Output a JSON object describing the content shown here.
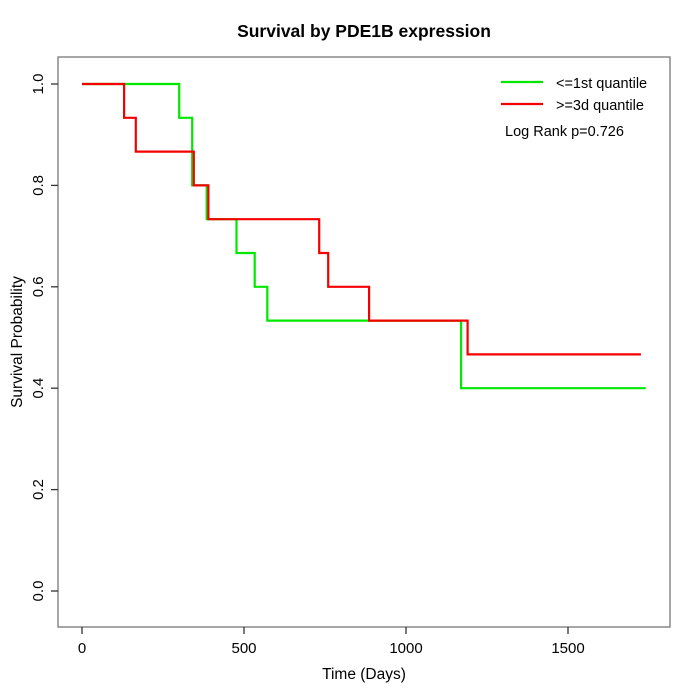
{
  "page": {
    "background": "#ffffff"
  },
  "chart_data": {
    "type": "line",
    "subtype": "kaplan-meier-step",
    "title": "Survival by PDE1B expression",
    "xlabel": "Time (Days)",
    "ylabel": "Survival Probability",
    "xlim": [
      0,
      1815
    ],
    "ylim": [
      0.0,
      1.0
    ],
    "xticks": [
      "0",
      "500",
      "1000",
      "1500"
    ],
    "yticks": [
      "0.0",
      "0.2",
      "0.4",
      "0.6",
      "0.8",
      "1.0"
    ],
    "grid": false,
    "legend_position": "top-right",
    "annotation": "Log Rank p=0.726",
    "series": [
      {
        "name": "<=1st quantile",
        "color": "#00e800",
        "points": [
          [
            0,
            1.0
          ],
          [
            300,
            0.9333
          ],
          [
            340,
            0.8
          ],
          [
            385,
            0.7333
          ],
          [
            477,
            0.6667
          ],
          [
            533,
            0.6
          ],
          [
            572,
            0.5333
          ],
          [
            1170,
            0.4
          ],
          [
            1740,
            0.4
          ]
        ]
      },
      {
        "name": ">=3d quantile",
        "color": "#f50000",
        "points": [
          [
            0,
            1.0
          ],
          [
            130,
            0.9333
          ],
          [
            166,
            0.8667
          ],
          [
            345,
            0.8
          ],
          [
            390,
            0.7333
          ],
          [
            732,
            0.6667
          ],
          [
            760,
            0.6
          ],
          [
            886,
            0.5333
          ],
          [
            1190,
            0.4667
          ],
          [
            1725,
            0.4667
          ]
        ]
      }
    ],
    "axis_color": "#777777",
    "tick_color": "#333333"
  }
}
